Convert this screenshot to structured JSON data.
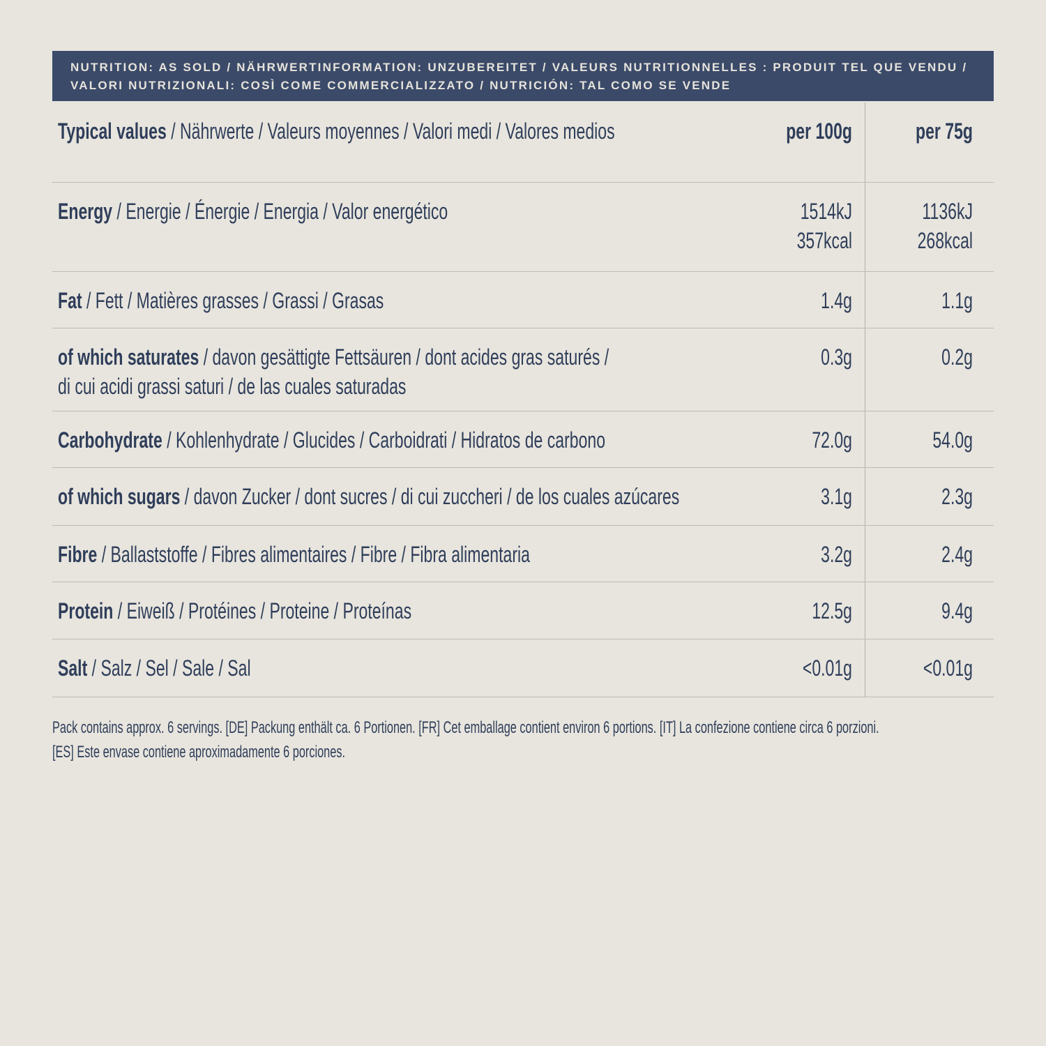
{
  "colors": {
    "background": "#E8E5DE",
    "banner_background": "#3B4A69",
    "banner_text": "#E6E3DB",
    "body_text": "#2F3E5A",
    "row_divider": "#BDBAB2",
    "column_divider": "#B3B0A8"
  },
  "banner": {
    "title": "NUTRITION: AS SOLD / NÄHRWERTINFORMATION: UNZUBEREITET / VALEURS NUTRITIONNELLES : PRODUIT TEL QUE VENDU /\nVALORI NUTRIZIONALI: COSÌ COME COMMERCIALIZZATO / NUTRICIÓN: TAL COMO SE VENDE"
  },
  "table": {
    "header": {
      "label_bold": "Typical values",
      "label_rest": " / Nährwerte / Valeurs moyennes / Valori medi / Valores medios",
      "per100": "per 100g",
      "per75": "per 75g"
    },
    "rows": [
      {
        "id": "energy",
        "label_bold": "Energy",
        "label_rest": " / Energie / Énergie / Energia / Valor energético",
        "per100": "1514kJ\n357kcal",
        "per75": "1136kJ\n268kcal"
      },
      {
        "id": "fat",
        "label_bold": "Fat",
        "label_rest": " / Fett / Matières grasses / Grassi / Grasas",
        "per100": "1.4g",
        "per75": "1.1g"
      },
      {
        "id": "saturates",
        "label_bold": "of which saturates",
        "label_rest": " / davon gesättigte Fettsäuren / dont acides gras saturés /\ndi cui acidi grassi saturi / de las cuales saturadas",
        "per100": "0.3g",
        "per75": "0.2g"
      },
      {
        "id": "carbohydrate",
        "label_bold": "Carbohydrate",
        "label_rest": " / Kohlenhydrate / Glucides / Carboidrati / Hidratos de carbono",
        "per100": "72.0g",
        "per75": "54.0g"
      },
      {
        "id": "sugars",
        "label_bold": "of which sugars",
        "label_rest": " / davon Zucker / dont sucres / di cui zuccheri / de los cuales azúcares",
        "per100": "3.1g",
        "per75": "2.3g"
      },
      {
        "id": "fibre",
        "label_bold": "Fibre",
        "label_rest": " / Ballaststoffe / Fibres alimentaires / Fibre / Fibra alimentaria",
        "per100": "3.2g",
        "per75": "2.4g"
      },
      {
        "id": "protein",
        "label_bold": "Protein",
        "label_rest": " / Eiweiß / Protéines / Proteine / Proteínas",
        "per100": "12.5g",
        "per75": "9.4g"
      },
      {
        "id": "salt",
        "label_bold": "Salt",
        "label_rest": " / Salz / Sel / Sale / Sal",
        "per100": "<0.01g",
        "per75": "<0.01g"
      }
    ]
  },
  "footer": {
    "note": "Pack contains approx. 6 servings. [DE] Packung enthält ca. 6 Portionen. [FR] Cet emballage contient environ 6 portions. [IT] La confezione contiene circa 6 porzioni.\n[ES] Este envase contiene aproximadamente 6 porciones."
  }
}
